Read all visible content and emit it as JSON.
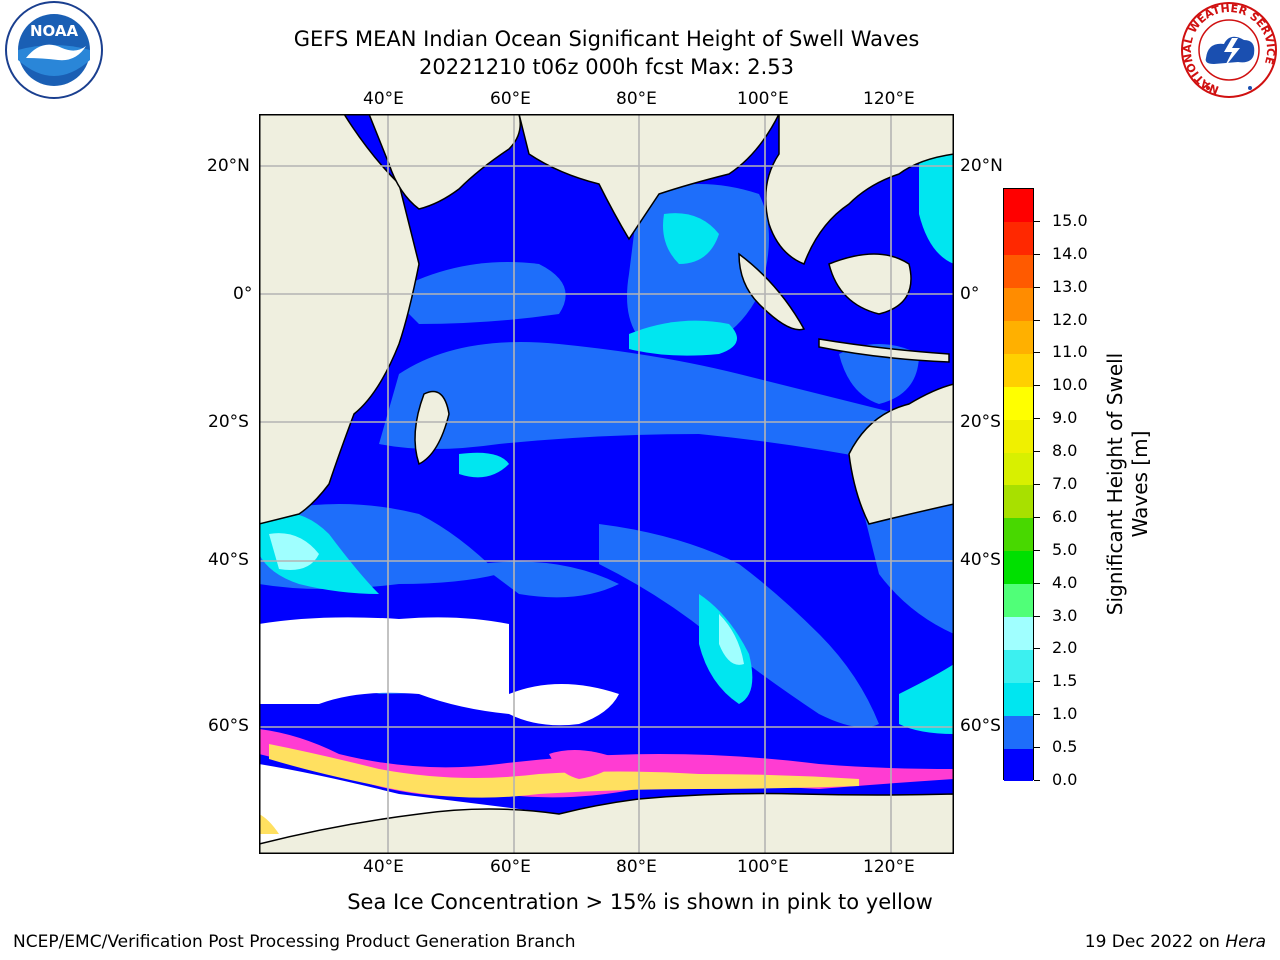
{
  "title": {
    "line1": "GEFS MEAN Indian Ocean Significant Height of Swell Waves",
    "line2": "20221210 t06z 000h fcst   Max: 2.53"
  },
  "axes": {
    "lon_ticks": [
      "40°E",
      "60°E",
      "80°E",
      "100°E",
      "120°E"
    ],
    "lat_ticks": [
      "20°N",
      "0°",
      "20°S",
      "40°S",
      "60°S"
    ]
  },
  "colorbar": {
    "label_line1": "Significant Height of Swell",
    "label_line2": "Waves [m]",
    "tick_labels": [
      "0.0",
      "0.5",
      "1.0",
      "1.5",
      "2.0",
      "3.0",
      "4.0",
      "5.0",
      "6.0",
      "7.0",
      "8.0",
      "9.0",
      "10.0",
      "11.0",
      "12.0",
      "13.0",
      "14.0",
      "15.0"
    ],
    "colors": [
      "#0000ff",
      "#1e6efa",
      "#00e6f0",
      "#3cf0f0",
      "#a0ffff",
      "#50ff78",
      "#00e000",
      "#48d800",
      "#a8e000",
      "#d8f000",
      "#f0f000",
      "#ffff00",
      "#ffd000",
      "#ffb000",
      "#ff8c00",
      "#ff5a00",
      "#ff2800",
      "#ff0000"
    ]
  },
  "map_colors": {
    "land": "#efefdf",
    "ice_white": "#ffffff",
    "ice_pink": "#ff3cd2",
    "ice_yellow": "#ffe060",
    "grid": "#b4b4b4"
  },
  "caption": "Sea Ice Concentration > 15% is shown in pink to yellow",
  "footer": {
    "left": "NCEP/EMC/Verification Post Processing Product Generation Branch",
    "right_prefix": "19 Dec 2022 on ",
    "right_machine": "Hera"
  },
  "logos": {
    "noaa": "NOAA",
    "nws_ring": "NATIONAL WEATHER SERVICE"
  }
}
